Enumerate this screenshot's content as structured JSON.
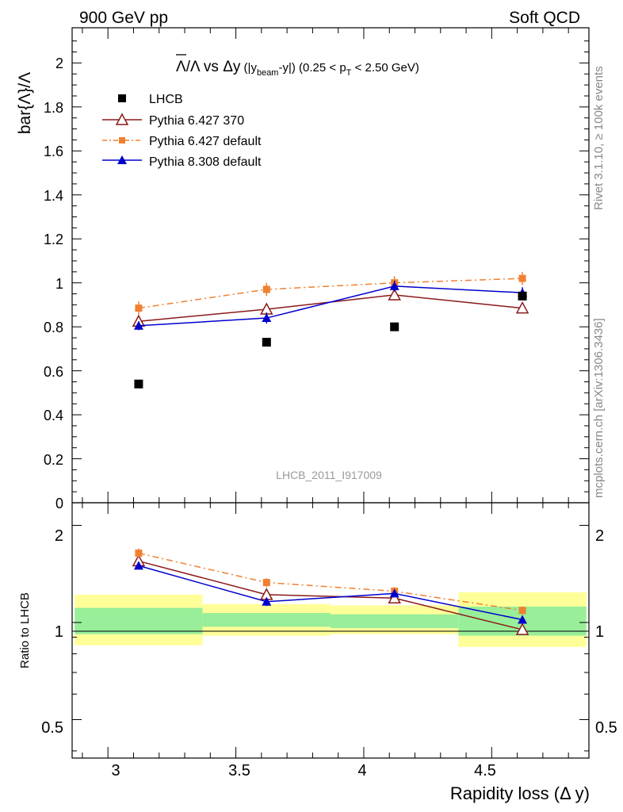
{
  "header": {
    "left": "900 GeV pp",
    "right": "Soft QCD"
  },
  "side_labels": {
    "rivet": "Rivet 3.1.10, ≥ 100k events",
    "mcplots": "mcplots.cern.ch [arXiv:1306.3436]"
  },
  "chart_data": {
    "type": "scatter",
    "title_parts": {
      "ratio": "Λ/Λ",
      "vs": " vs ",
      "delta": "Δy",
      "paren_open": " (|y",
      "beam": "beam",
      "paren_close": "-y|)",
      "range_open": " (0.25 < p",
      "t_sub": "T",
      "range_close": " < 2.50 GeV)"
    },
    "analysis_id": "LHCB_2011_I917009",
    "ylabel": "bar{Λ}/Λ",
    "ratio_ylabel": "Ratio to LHCB",
    "xlabel": "Rapidity loss (Δ y)",
    "xlim": [
      2.86,
      4.88
    ],
    "ylim": [
      0,
      2.16
    ],
    "ratio_ylim": [
      0.38,
      2.35
    ],
    "x_ticks": [
      "3",
      "3.5",
      "4",
      "4.5"
    ],
    "y_ticks": [
      "0",
      "0.2",
      "0.4",
      "0.6",
      "0.8",
      "1",
      "1.2",
      "1.4",
      "1.6",
      "1.8",
      "2"
    ],
    "ratio_ticks": [
      "0.5",
      "1",
      "2"
    ],
    "x": [
      3.12,
      3.62,
      4.12,
      4.62
    ],
    "bins": [
      [
        2.87,
        3.37
      ],
      [
        3.37,
        3.87
      ],
      [
        3.87,
        4.37
      ],
      [
        4.37,
        4.87
      ]
    ],
    "band_inner": [
      [
        0.92,
        1.11
      ],
      [
        0.97,
        1.07
      ],
      [
        0.96,
        1.06
      ],
      [
        0.91,
        1.12
      ]
    ],
    "band_outer": [
      [
        0.85,
        1.22
      ],
      [
        0.91,
        1.14
      ],
      [
        0.92,
        1.13
      ],
      [
        0.84,
        1.24
      ]
    ],
    "series": [
      {
        "name": "LHCB",
        "color": "#000000",
        "values": [
          0.54,
          0.73,
          0.8,
          0.94
        ],
        "ratio": [
          1.0,
          1.0,
          1.0,
          1.0
        ]
      },
      {
        "name": "Pythia 6.427 370",
        "color": "#8b1a1a",
        "values": [
          0.825,
          0.88,
          0.945,
          0.885
        ],
        "ratio": [
          1.55,
          1.22,
          1.19,
          0.95
        ],
        "errors": [
          0.02,
          0.025,
          0.025,
          0.02
        ]
      },
      {
        "name": "Pythia 6.427 default",
        "color": "#f08030",
        "values": [
          0.885,
          0.97,
          1.0,
          1.02
        ],
        "ratio": [
          1.64,
          1.33,
          1.25,
          1.09
        ],
        "errors": [
          0.03,
          0.03,
          0.03,
          0.03
        ]
      },
      {
        "name": "Pythia 8.308 default",
        "color": "#0000cc",
        "values": [
          0.805,
          0.84,
          0.985,
          0.955
        ],
        "ratio": [
          1.5,
          1.16,
          1.23,
          1.02
        ],
        "errors": [
          0.02,
          0.025,
          0.025,
          0.025
        ]
      }
    ]
  }
}
